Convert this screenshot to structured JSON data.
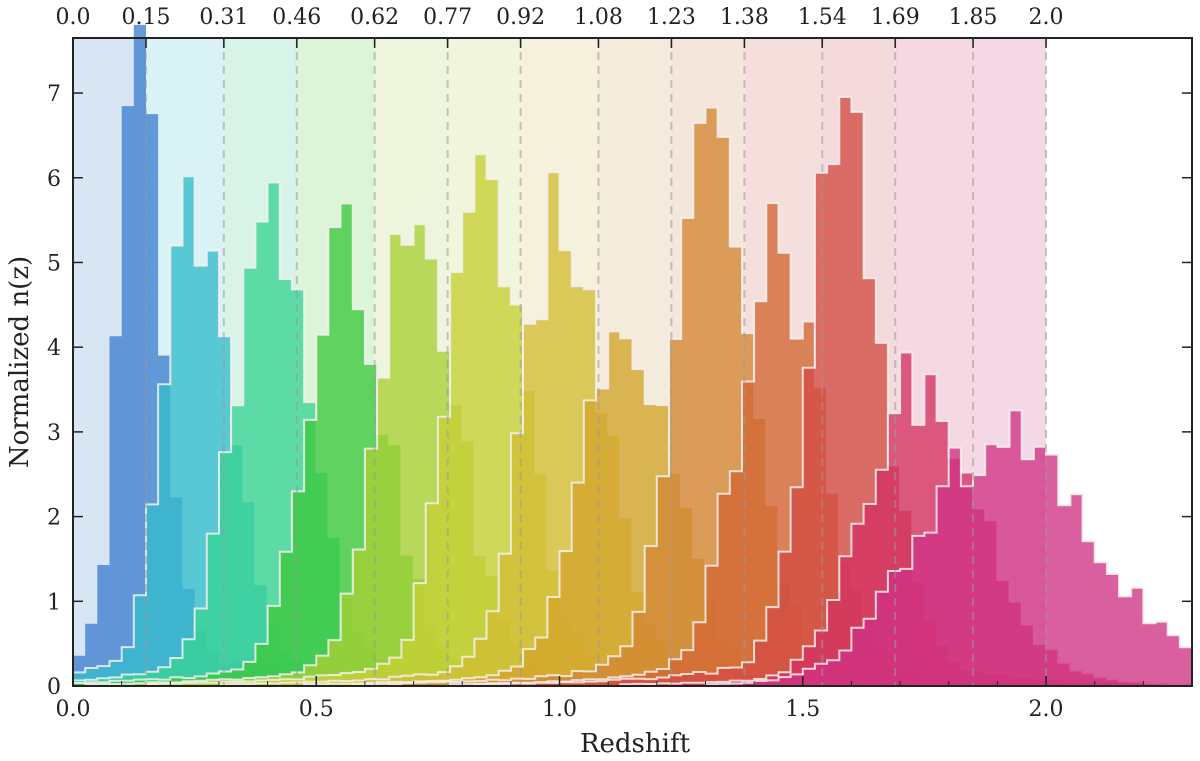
{
  "chart_data": {
    "type": "histogram",
    "xlabel": "Redshift",
    "ylabel": "Normalized n(z)",
    "xlim": [
      0.0,
      2.3
    ],
    "ylim": [
      0,
      7.65
    ],
    "x_ticks": [
      0.0,
      0.5,
      1.0,
      1.5,
      2.0
    ],
    "x_tick_labels": [
      "0.0",
      "0.5",
      "1.0",
      "1.5",
      "2.0"
    ],
    "y_ticks": [
      0,
      1,
      2,
      3,
      4,
      5,
      6,
      7
    ],
    "y_tick_labels": [
      "0",
      "1",
      "2",
      "3",
      "4",
      "5",
      "6",
      "7"
    ],
    "top_ticks": [
      0.0,
      0.15,
      0.31,
      0.46,
      0.62,
      0.77,
      0.92,
      1.08,
      1.23,
      1.38,
      1.54,
      1.69,
      1.85,
      2.0
    ],
    "top_tick_labels": [
      "0.0",
      "0.15",
      "0.31",
      "0.46",
      "0.62",
      "0.77",
      "0.92",
      "1.08",
      "1.23",
      "1.38",
      "1.54",
      "1.69",
      "1.85",
      "2.0"
    ],
    "bin_edges": [
      0.0,
      0.15,
      0.31,
      0.46,
      0.62,
      0.77,
      0.92,
      1.08,
      1.23,
      1.38,
      1.54,
      1.69,
      1.85,
      2.0
    ],
    "bin_width": 0.025,
    "grid": false,
    "legend": "none",
    "colors": [
      "#3d7fd0",
      "#34bccc",
      "#38d494",
      "#3cc83c",
      "#a8d034",
      "#c6d034",
      "#d2bc34",
      "#d4a42c",
      "#d48634",
      "#d46634",
      "#d44c44",
      "#d43262",
      "#d03284"
    ],
    "band_colors": [
      "#d8e6f4",
      "#d8f2f6",
      "#d8f4e8",
      "#dcf4d8",
      "#edf5dc",
      "#f1f5dc",
      "#f5f1dc",
      "#f5ebdc",
      "#f5e6dc",
      "#f5dfdc",
      "#f5dadc",
      "#f5d8e2",
      "#f5d8e6"
    ],
    "series": [
      {
        "peak": 0.13,
        "amp": 7.35,
        "sigL": 0.035,
        "sigR": 0.05,
        "tail": 0.008,
        "outline": false
      },
      {
        "peak": 0.24,
        "amp": 5.5,
        "sigL": 0.05,
        "sigR": 0.08,
        "tail": 0.008,
        "outline": true
      },
      {
        "peak": 0.4,
        "amp": 4.9,
        "sigL": 0.07,
        "sigR": 0.09,
        "tail": 0.01,
        "outline": true
      },
      {
        "peak": 0.55,
        "amp": 4.9,
        "sigL": 0.07,
        "sigR": 0.09,
        "tail": 0.01,
        "outline": true
      },
      {
        "peak": 0.7,
        "amp": 5.0,
        "sigL": 0.07,
        "sigR": 0.09,
        "tail": 0.01,
        "outline": true
      },
      {
        "peak": 0.84,
        "amp": 5.5,
        "sigL": 0.065,
        "sigR": 0.085,
        "tail": 0.01,
        "outline": true
      },
      {
        "peak": 1.0,
        "amp": 5.1,
        "sigL": 0.07,
        "sigR": 0.09,
        "tail": 0.01,
        "outline": true
      },
      {
        "peak": 1.13,
        "amp": 4.2,
        "sigL": 0.08,
        "sigR": 0.1,
        "tail": 0.01,
        "outline": true
      },
      {
        "peak": 1.31,
        "amp": 5.8,
        "sigL": 0.07,
        "sigR": 0.085,
        "tail": 0.01,
        "outline": true
      },
      {
        "peak": 1.45,
        "amp": 4.7,
        "sigL": 0.08,
        "sigR": 0.09,
        "tail": 0.01,
        "outline": true
      },
      {
        "peak": 1.58,
        "amp": 6.2,
        "sigL": 0.065,
        "sigR": 0.08,
        "tail": 0.01,
        "outline": true
      },
      {
        "peak": 1.73,
        "amp": 3.3,
        "sigL": 0.1,
        "sigR": 0.13,
        "tail": 0.01,
        "outline": true
      },
      {
        "peak": 1.9,
        "amp": 2.7,
        "sigL": 0.16,
        "sigR": 0.2,
        "tail": 0.01,
        "outline": true
      }
    ]
  }
}
